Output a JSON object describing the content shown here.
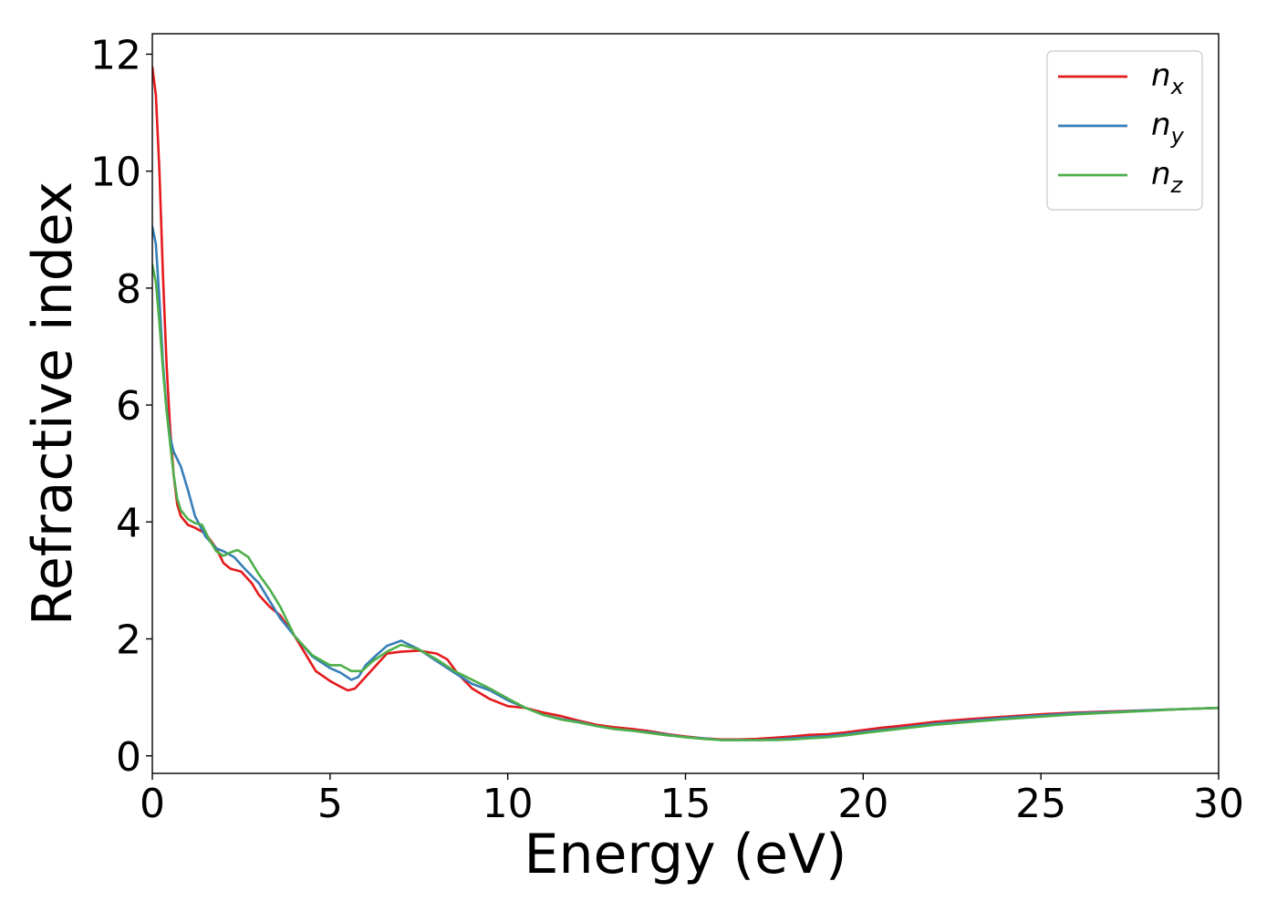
{
  "chart_data": {
    "type": "line",
    "xlabel": "Energy (eV)",
    "ylabel": "Refractive index",
    "xlim": [
      0,
      30
    ],
    "ylim": [
      -0.3,
      12.35
    ],
    "xticks": [
      "0",
      "5",
      "10",
      "15",
      "20",
      "25",
      "30"
    ],
    "yticks": [
      "0",
      "2",
      "4",
      "6",
      "8",
      "10",
      "12"
    ],
    "grid": false,
    "legend_position": "top-right",
    "series": [
      {
        "name": "n",
        "subscript": "x",
        "color": "#e41a1c",
        "x": [
          0,
          0.1,
          0.2,
          0.3,
          0.4,
          0.5,
          0.6,
          0.7,
          0.8,
          1.0,
          1.2,
          1.5,
          1.8,
          2.0,
          2.2,
          2.5,
          2.8,
          3.0,
          3.3,
          3.6,
          4.0,
          4.3,
          4.6,
          5.0,
          5.3,
          5.5,
          5.7,
          6.0,
          6.3,
          6.6,
          7.0,
          7.5,
          8.0,
          8.3,
          8.6,
          9.0,
          9.5,
          10.0,
          10.5,
          11.0,
          11.5,
          12.0,
          12.5,
          13.0,
          13.5,
          14.0,
          14.5,
          15.0,
          15.5,
          16.0,
          16.5,
          17.0,
          17.5,
          18.0,
          18.5,
          19.0,
          19.5,
          20.0,
          20.5,
          21.0,
          22.0,
          23.0,
          24.0,
          25.0,
          26.0,
          27.0,
          28.0,
          29.0,
          30.0
        ],
        "y": [
          11.78,
          11.3,
          10.0,
          8.2,
          6.7,
          5.6,
          4.8,
          4.3,
          4.1,
          3.95,
          3.9,
          3.8,
          3.55,
          3.3,
          3.2,
          3.15,
          2.95,
          2.75,
          2.55,
          2.4,
          2.05,
          1.75,
          1.45,
          1.28,
          1.18,
          1.12,
          1.15,
          1.35,
          1.55,
          1.75,
          1.78,
          1.8,
          1.75,
          1.65,
          1.4,
          1.15,
          0.97,
          0.85,
          0.82,
          0.74,
          0.68,
          0.6,
          0.53,
          0.49,
          0.46,
          0.42,
          0.37,
          0.33,
          0.3,
          0.28,
          0.28,
          0.29,
          0.31,
          0.33,
          0.36,
          0.37,
          0.4,
          0.44,
          0.48,
          0.51,
          0.58,
          0.63,
          0.67,
          0.71,
          0.74,
          0.76,
          0.78,
          0.8,
          0.82
        ]
      },
      {
        "name": "n",
        "subscript": "y",
        "color": "#377eb8",
        "x": [
          0,
          0.1,
          0.2,
          0.3,
          0.4,
          0.5,
          0.6,
          0.8,
          1.0,
          1.2,
          1.5,
          1.8,
          2.0,
          2.3,
          2.6,
          3.0,
          3.3,
          3.6,
          4.0,
          4.5,
          5.0,
          5.3,
          5.6,
          5.8,
          6.0,
          6.3,
          6.6,
          7.0,
          7.5,
          8.0,
          8.5,
          9.0,
          9.5,
          10.0,
          10.5,
          11.0,
          11.5,
          12.0,
          12.5,
          13.0,
          13.5,
          14.0,
          14.5,
          15.0,
          15.5,
          16.0,
          16.5,
          17.0,
          17.5,
          18.0,
          18.5,
          19.0,
          19.5,
          20.0,
          21.0,
          22.0,
          23.0,
          24.0,
          25.0,
          26.0,
          27.0,
          28.0,
          29.0,
          30.0
        ],
        "y": [
          9.05,
          8.75,
          7.8,
          6.7,
          5.95,
          5.45,
          5.2,
          4.95,
          4.55,
          4.1,
          3.75,
          3.55,
          3.5,
          3.4,
          3.2,
          2.95,
          2.65,
          2.35,
          2.05,
          1.7,
          1.5,
          1.42,
          1.3,
          1.35,
          1.55,
          1.72,
          1.88,
          1.97,
          1.82,
          1.62,
          1.42,
          1.23,
          1.12,
          0.95,
          0.82,
          0.7,
          0.63,
          0.58,
          0.51,
          0.46,
          0.43,
          0.4,
          0.36,
          0.32,
          0.3,
          0.27,
          0.27,
          0.27,
          0.28,
          0.3,
          0.32,
          0.34,
          0.37,
          0.41,
          0.47,
          0.55,
          0.6,
          0.65,
          0.69,
          0.73,
          0.75,
          0.78,
          0.8,
          0.82
        ]
      },
      {
        "name": "n",
        "subscript": "z",
        "color": "#4daf4a",
        "x": [
          0,
          0.1,
          0.2,
          0.3,
          0.4,
          0.5,
          0.6,
          0.7,
          0.8,
          1.0,
          1.2,
          1.4,
          1.6,
          1.8,
          2.0,
          2.2,
          2.4,
          2.7,
          3.0,
          3.3,
          3.6,
          4.0,
          4.5,
          5.0,
          5.3,
          5.6,
          5.9,
          6.2,
          6.6,
          7.0,
          7.5,
          8.0,
          8.5,
          9.0,
          9.5,
          10.0,
          10.5,
          11.0,
          11.5,
          12.0,
          12.5,
          13.0,
          13.5,
          14.0,
          14.5,
          15.0,
          15.5,
          16.0,
          16.5,
          17.0,
          17.5,
          18.0,
          18.5,
          19.0,
          19.5,
          20.0,
          21.0,
          22.0,
          23.0,
          24.0,
          25.0,
          26.0,
          27.0,
          28.0,
          29.0,
          30.0
        ],
        "y": [
          8.4,
          8.1,
          7.4,
          6.6,
          5.9,
          5.35,
          4.8,
          4.4,
          4.2,
          4.05,
          3.98,
          3.95,
          3.7,
          3.5,
          3.42,
          3.48,
          3.52,
          3.4,
          3.1,
          2.85,
          2.55,
          2.05,
          1.72,
          1.55,
          1.55,
          1.45,
          1.45,
          1.62,
          1.78,
          1.9,
          1.82,
          1.65,
          1.45,
          1.3,
          1.15,
          0.98,
          0.82,
          0.7,
          0.62,
          0.57,
          0.51,
          0.46,
          0.43,
          0.39,
          0.35,
          0.32,
          0.29,
          0.27,
          0.27,
          0.27,
          0.27,
          0.28,
          0.3,
          0.32,
          0.35,
          0.39,
          0.46,
          0.53,
          0.58,
          0.63,
          0.67,
          0.71,
          0.74,
          0.77,
          0.8,
          0.82
        ]
      }
    ]
  }
}
